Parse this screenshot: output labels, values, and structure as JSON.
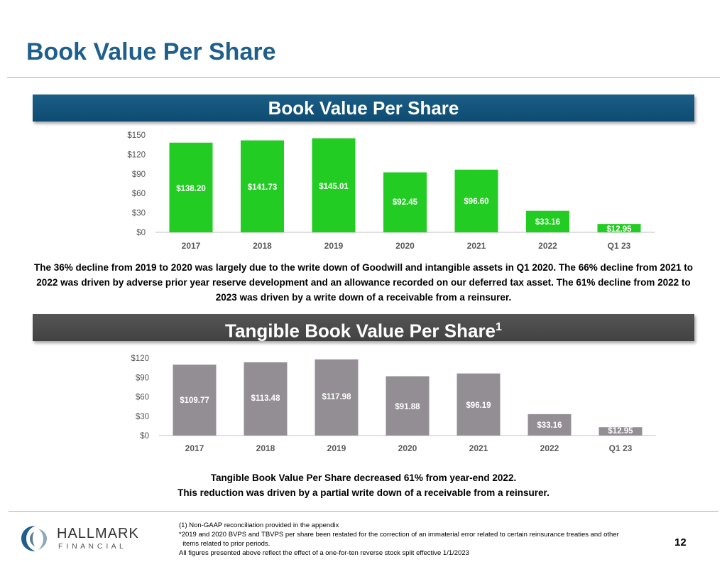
{
  "page": {
    "title": "Book Value Per Share",
    "page_number": "12"
  },
  "section_bvps": {
    "banner": "Book Value Per Share",
    "paragraph": "The 36% decline from 2019 to 2020 was largely due to the write down of Goodwill and intangible assets in Q1 2020.  The 66% decline from 2021 to 2022 was driven by adverse prior year reserve development and an allowance recorded on our deferred tax asset. The 61% decline from 2022 to 2023 was driven by a write down of a receivable from a reinsurer."
  },
  "section_tbvps": {
    "banner": "Tangible Book Value Per Share",
    "banner_superscript": "1",
    "note_line1": "Tangible Book Value Per Share decreased 61% from year-end 2022.",
    "note_line2": "This reduction was driven by a partial write down of a receivable from a reinsurer."
  },
  "footnotes": {
    "line1": "(1) Non-GAAP reconciliation provided in the appendix",
    "line2": "*2019 and 2020 BVPS and TBVPS per share been restated for the correction of an immaterial error related to certain reinsurance treaties and other",
    "line3": "  items related to prior periods.",
    "line4": "All figures presented above reflect the effect of a one-for-ten reverse stock split effective 1/1/2023"
  },
  "logo": {
    "name_line1": "HALLMARK",
    "name_line2": "F I N A N C I A L",
    "icon": "hallmark-logo-icon"
  },
  "chart_data": [
    {
      "type": "bar",
      "title": "Book Value Per Share",
      "categories": [
        "2017",
        "2018",
        "2019",
        "2020",
        "2021",
        "2022",
        "Q1 23"
      ],
      "values": [
        138.2,
        141.73,
        145.01,
        92.45,
        96.6,
        33.16,
        12.95
      ],
      "data_labels": [
        "$138.20",
        "$141.73",
        "$145.01",
        "$92.45",
        "$96.60",
        "$33.16",
        "$12.95"
      ],
      "ylim": [
        0,
        150
      ],
      "yticks": [
        0,
        30,
        60,
        90,
        120,
        150
      ],
      "ytick_labels": [
        "$0",
        "$30",
        "$60",
        "$90",
        "$120",
        "$150"
      ],
      "color": "#22cc22",
      "grid": false,
      "legend": "none"
    },
    {
      "type": "bar",
      "title": "Tangible Book Value Per Share",
      "categories": [
        "2017",
        "2018",
        "2019",
        "2020",
        "2021",
        "2022",
        "Q1 23"
      ],
      "values": [
        109.77,
        113.48,
        117.98,
        91.88,
        96.19,
        33.16,
        12.95
      ],
      "data_labels": [
        "$109.77",
        "$113.48",
        "$117.98",
        "$91.88",
        "$96.19",
        "$33.16",
        "$12.95"
      ],
      "ylim": [
        0,
        120
      ],
      "yticks": [
        0,
        30,
        60,
        90,
        120
      ],
      "ytick_labels": [
        "$0",
        "$30",
        "$60",
        "$90",
        "$120"
      ],
      "color": "#938e94",
      "grid": false,
      "legend": "none"
    }
  ]
}
